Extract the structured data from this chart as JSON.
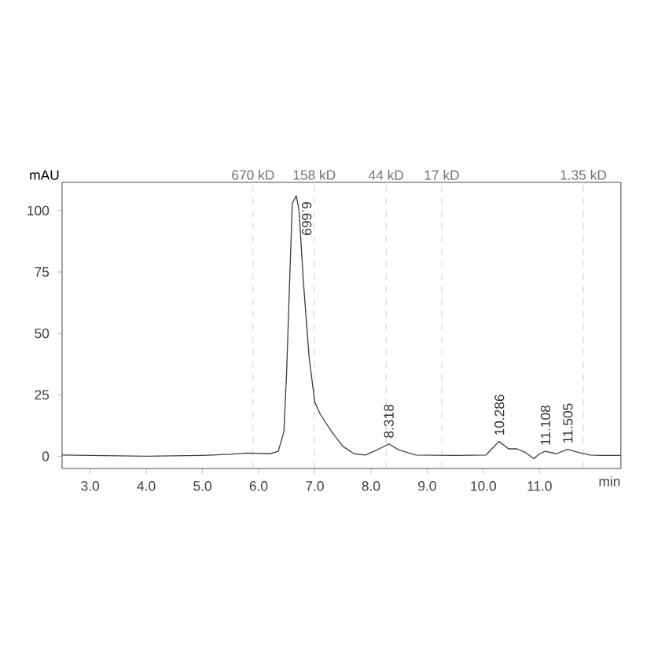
{
  "chart_data": {
    "type": "line",
    "xlabel": "min",
    "ylabel": "mAU",
    "xlim": [
      2.5,
      12.45
    ],
    "ylim": [
      -5,
      111.5
    ],
    "xticks": [
      {
        "value": 3,
        "label": "3.0"
      },
      {
        "value": 4,
        "label": "4.0"
      },
      {
        "value": 5,
        "label": "5.0"
      },
      {
        "value": 6,
        "label": "6.0"
      },
      {
        "value": 7,
        "label": "7.0"
      },
      {
        "value": 8,
        "label": "8.0"
      },
      {
        "value": 9,
        "label": "9.0"
      },
      {
        "value": 10,
        "label": "10.0"
      },
      {
        "value": 11,
        "label": "11.0"
      }
    ],
    "yticks": [
      0,
      25,
      50,
      75,
      100
    ],
    "marker": "none",
    "line_style": "solid",
    "series": [
      {
        "color": "#404040",
        "x": [
          2.5,
          3.0,
          4.0,
          5.0,
          5.5,
          5.8,
          6.2,
          6.35,
          6.45,
          6.5,
          6.55,
          6.6,
          6.67,
          6.72,
          6.8,
          6.9,
          7.0,
          7.1,
          7.3,
          7.5,
          7.7,
          7.9,
          8.1,
          8.32,
          8.5,
          8.8,
          9.5,
          10.05,
          10.15,
          10.28,
          10.45,
          10.6,
          10.75,
          10.9,
          11.0,
          11.1,
          11.3,
          11.5,
          11.7,
          11.9,
          12.1,
          12.45
        ],
        "values": [
          0.5,
          0.3,
          0,
          0.3,
          0.8,
          1.3,
          1.0,
          2,
          10,
          35,
          70,
          103,
          106,
          100,
          70,
          40,
          22,
          17,
          10,
          4,
          1,
          0.5,
          2.5,
          5,
          2.5,
          0.5,
          0.3,
          0.5,
          3,
          6,
          3,
          3,
          1.5,
          -1,
          1,
          2,
          1,
          2.8,
          1.5,
          0.5,
          0.3,
          0.3
        ]
      }
    ],
    "ref_lines": [
      {
        "axis": "x",
        "value": 5.9,
        "label": "670 kD",
        "color": "#d0d0d0",
        "line_style": "dashed"
      },
      {
        "axis": "x",
        "value": 6.99,
        "label": "158 kD",
        "color": "#d0d0d0",
        "line_style": "dashed"
      },
      {
        "axis": "x",
        "value": 8.27,
        "label": "44 kD",
        "color": "#d0d0d0",
        "line_style": "dashed"
      },
      {
        "axis": "x",
        "value": 9.26,
        "label": "17 kD",
        "color": "#d0d0d0",
        "line_style": "dashed"
      },
      {
        "axis": "x",
        "value": 11.78,
        "label": "1.35 kD",
        "color": "#d0d0d0",
        "line_style": "dashed"
      }
    ],
    "annotations": [
      {
        "text": "6.669",
        "x": 6.669,
        "y": 106
      },
      {
        "text": "8.318",
        "x": 8.318,
        "y": 5
      },
      {
        "text": "10.286",
        "x": 10.286,
        "y": 6
      },
      {
        "text": "11.108",
        "x": 11.108,
        "y": 2
      },
      {
        "text": "11.505",
        "x": 11.505,
        "y": 2.8
      }
    ]
  }
}
